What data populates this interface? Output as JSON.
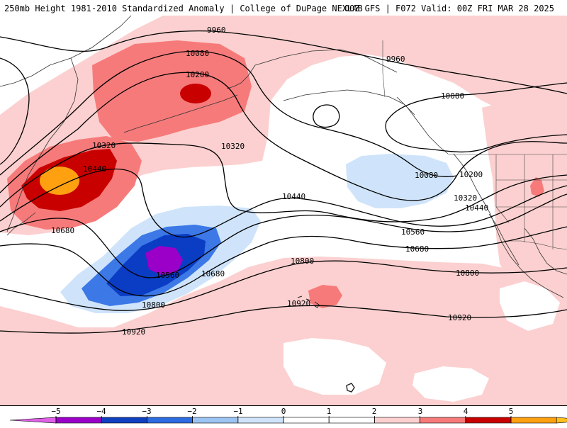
{
  "header": {
    "title_left": "250mb Height 1981-2010 Standardized Anomaly | College of DuPage NEXLAB",
    "title_right": "00Z GFS | F072 Valid: 00Z FRI MAR 28 2025"
  },
  "contour_labels": [
    "9960",
    "9960",
    "10080",
    "10080",
    "10080",
    "10200",
    "10200",
    "10320",
    "10320",
    "10320",
    "10440",
    "10440",
    "10440",
    "10560",
    "10560",
    "10680",
    "10680",
    "10680",
    "10800",
    "10800",
    "10800",
    "10920",
    "10920",
    "10920"
  ],
  "colorbar": {
    "ticks": [
      "−5",
      "−4",
      "−3",
      "−2",
      "−1",
      "0",
      "1",
      "2",
      "3",
      "4",
      "5"
    ],
    "bin_colors": [
      "#9a00c8",
      "#1040c0",
      "#2d6be0",
      "#9cc4f2",
      "#cfe4fa",
      "#ffffff",
      "#ffffff",
      "#fcd0d0",
      "#f77a7a",
      "#c80000",
      "#ffa010"
    ],
    "end_left_color": "#e060e8",
    "end_right_color": "#ffc020"
  },
  "shading_colors": {
    "neg1": "#cfe4fa",
    "neg2": "#3c78e6",
    "neg3": "#0a3cc4",
    "neg5": "#9a00c8",
    "pos1": "#fcd0d0",
    "pos2": "#f77a7a",
    "pos3": "#c80000",
    "pos4": "#ffa010"
  }
}
